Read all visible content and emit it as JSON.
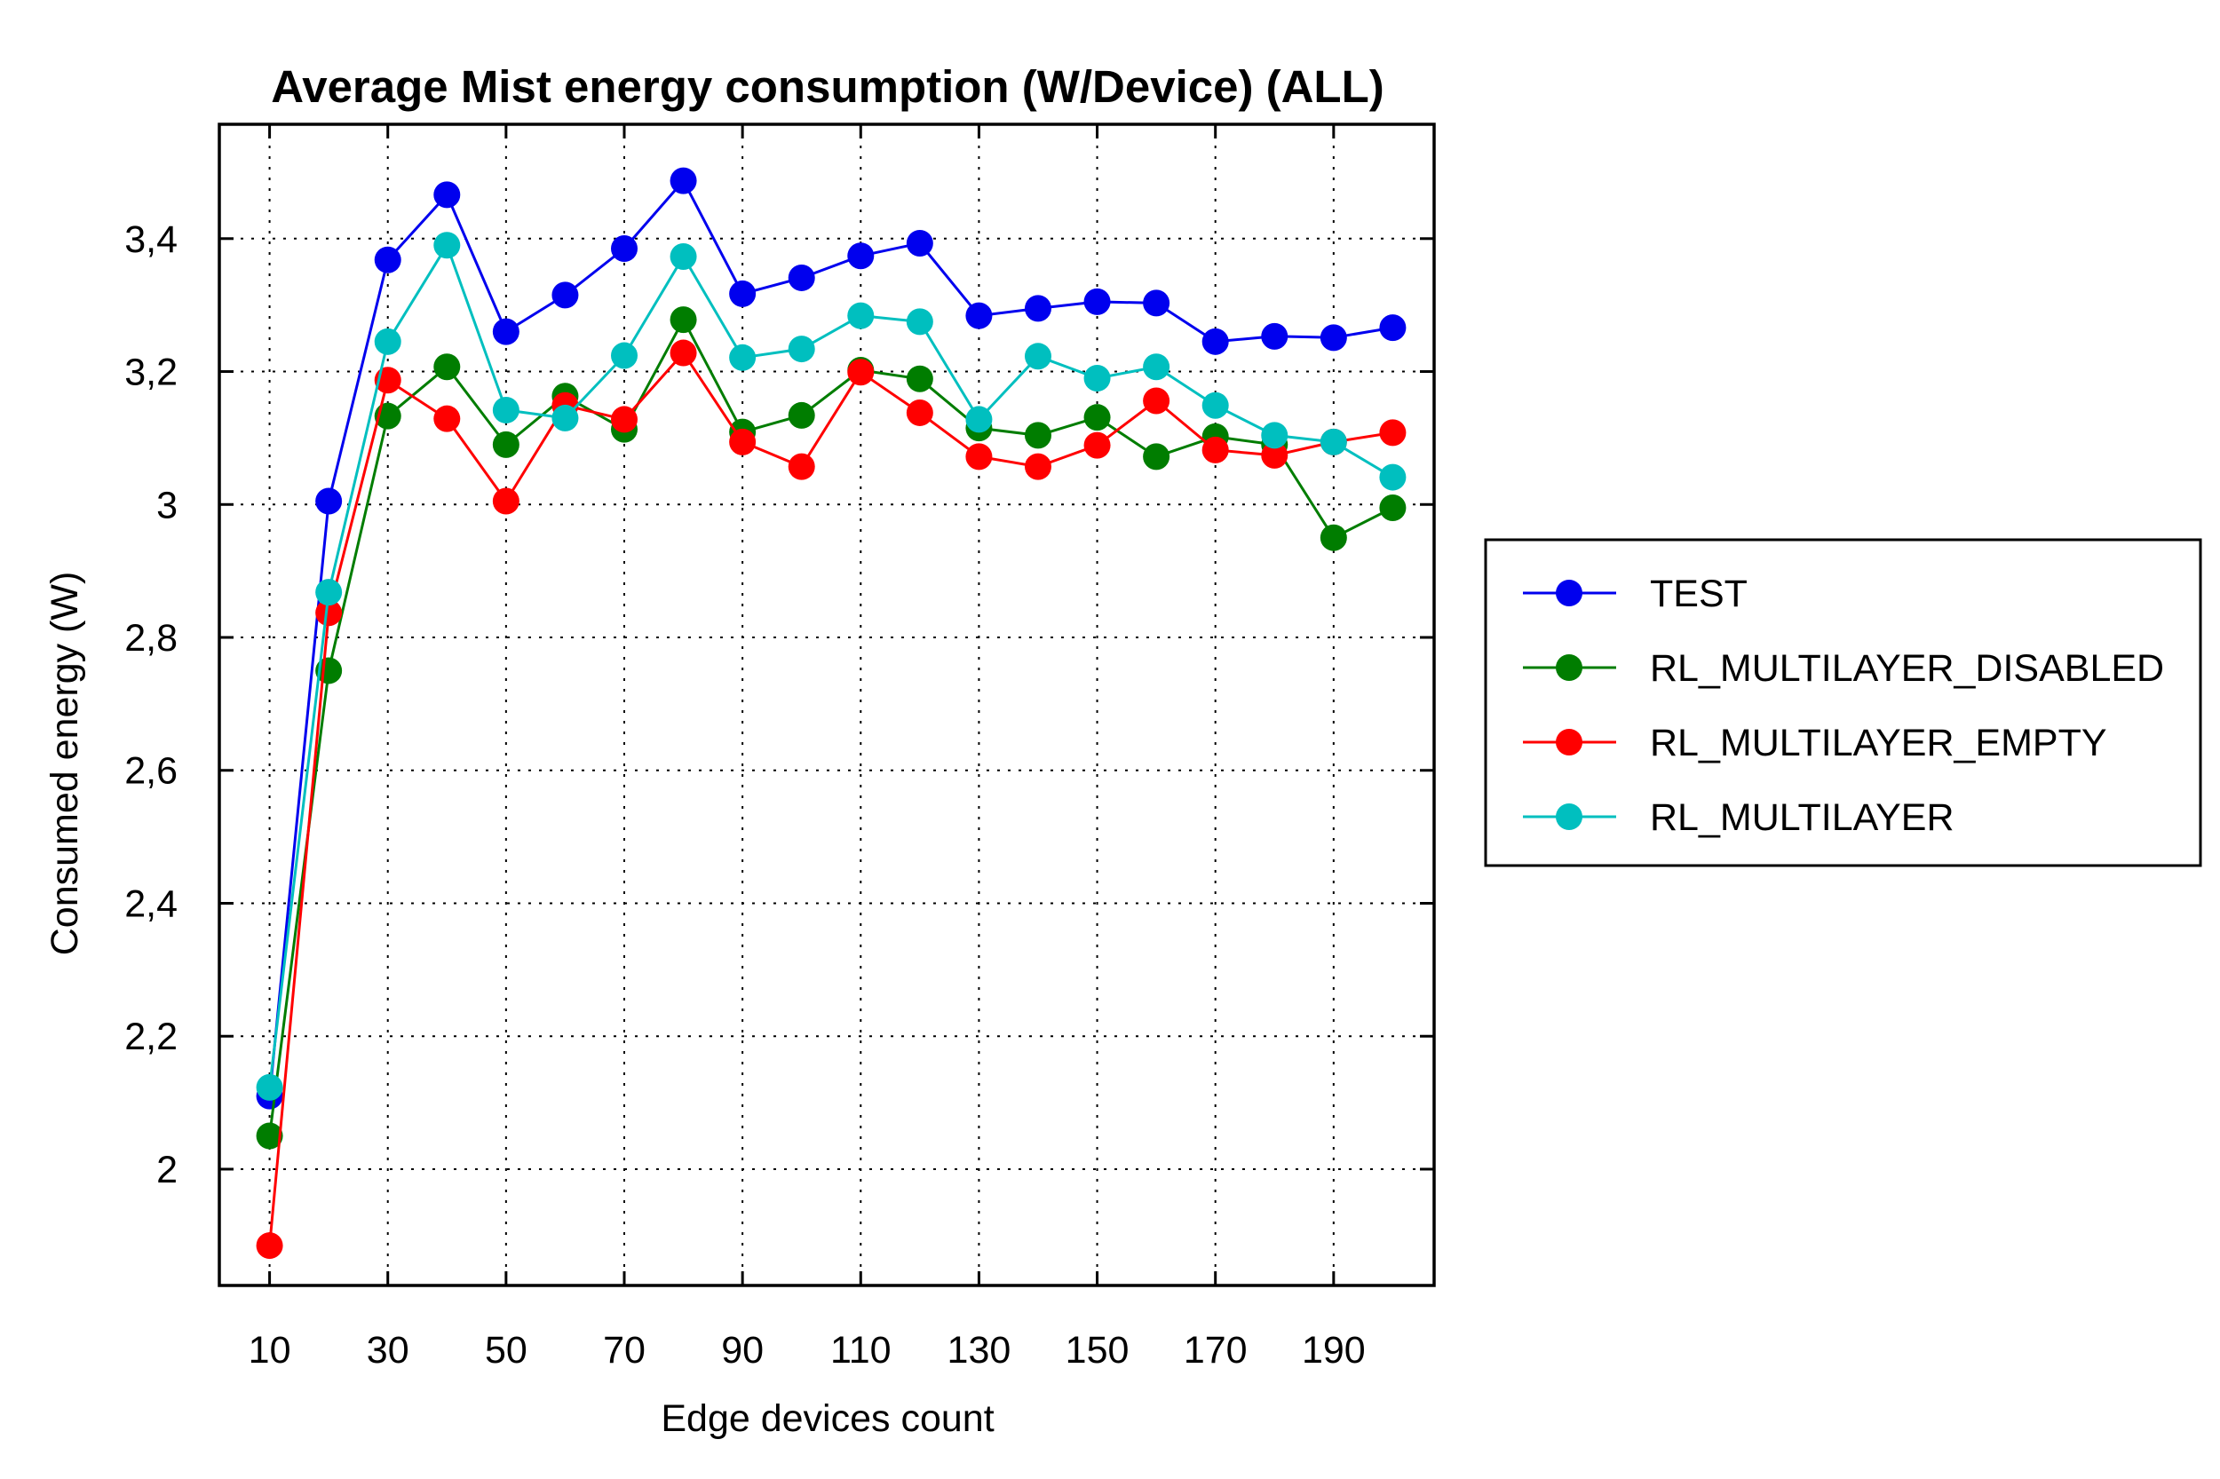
{
  "chart_data": {
    "type": "line",
    "title": "Average Mist energy consumption (W/Device) (ALL)",
    "xlabel": "Edge devices count",
    "ylabel": "Consumed energy (W)",
    "x": [
      10,
      20,
      30,
      40,
      50,
      60,
      70,
      80,
      90,
      100,
      110,
      120,
      130,
      140,
      150,
      160,
      170,
      180,
      190,
      200
    ],
    "xticks": [
      "10",
      "30",
      "50",
      "70",
      "90",
      "110",
      "130",
      "150",
      "170",
      "190"
    ],
    "xtick_values": [
      10,
      30,
      50,
      70,
      90,
      110,
      130,
      150,
      170,
      190
    ],
    "yticks": [
      "2",
      "2,2",
      "2,4",
      "2,6",
      "2,8",
      "3",
      "3,2",
      "3,4"
    ],
    "ytick_values": [
      2.0,
      2.2,
      2.4,
      2.6,
      2.8,
      3.0,
      3.2,
      3.4
    ],
    "xlim": [
      1.5,
      207
    ],
    "ylim": [
      1.825,
      3.572
    ],
    "grid": true,
    "legend_position": "right",
    "series": [
      {
        "name": "TEST",
        "color": "#0000ee",
        "values": [
          2.11,
          3.005,
          3.368,
          3.466,
          3.26,
          3.315,
          3.385,
          3.487,
          3.317,
          3.341,
          3.374,
          3.393,
          3.284,
          3.295,
          3.305,
          3.303,
          3.245,
          3.253,
          3.251,
          3.266
        ]
      },
      {
        "name": "RL_MULTILAYER_DISABLED",
        "color": "#007d00",
        "values": [
          2.05,
          2.75,
          3.133,
          3.207,
          3.09,
          3.163,
          3.113,
          3.278,
          3.109,
          3.134,
          3.202,
          3.189,
          3.115,
          3.104,
          3.131,
          3.072,
          3.102,
          3.09,
          2.95,
          2.995
        ]
      },
      {
        "name": "RL_MULTILAYER_EMPTY",
        "color": "#ff0000",
        "values": [
          1.885,
          2.837,
          3.187,
          3.129,
          3.005,
          3.149,
          3.128,
          3.228,
          3.094,
          3.057,
          3.199,
          3.138,
          3.072,
          3.057,
          3.089,
          3.156,
          3.082,
          3.074,
          3.094,
          3.108
        ]
      },
      {
        "name": "RL_MULTILAYER",
        "color": "#00bfbf",
        "values": [
          2.123,
          2.868,
          3.245,
          3.39,
          3.142,
          3.13,
          3.224,
          3.373,
          3.221,
          3.234,
          3.284,
          3.275,
          3.128,
          3.223,
          3.19,
          3.207,
          3.149,
          3.104,
          3.094,
          3.041
        ]
      }
    ]
  }
}
